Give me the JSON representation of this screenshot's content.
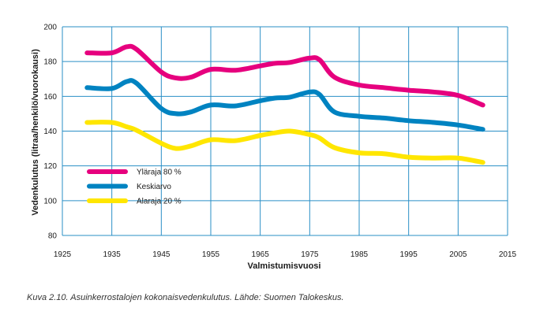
{
  "chart_data": {
    "type": "line",
    "title": "",
    "xlabel": "Valmistumisvuosi",
    "ylabel": "Vedenkulutus (litraa/henkilö/vuorokausi)",
    "xlim": [
      1925,
      2015
    ],
    "ylim": [
      80,
      200
    ],
    "xticks": [
      1925,
      1935,
      1945,
      1955,
      1965,
      1975,
      1985,
      1995,
      2005,
      2015
    ],
    "yticks": [
      80,
      100,
      120,
      140,
      160,
      180,
      200
    ],
    "grid": "vertical lines at tick years; horizontal lines at y-ticks",
    "legend_position": "lower-left",
    "series": [
      {
        "name": "Yläraja 80 %",
        "color": "#e6007e",
        "x": [
          1930,
          1935,
          1938,
          1940,
          1945,
          1948,
          1951,
          1955,
          1960,
          1965,
          1968,
          1971,
          1975,
          1977,
          1980,
          1985,
          1990,
          1995,
          2000,
          2005,
          2010
        ],
        "y": [
          185,
          185,
          188.5,
          187,
          174,
          170.5,
          171,
          175.5,
          175,
          177.5,
          179,
          179.5,
          182,
          181,
          171,
          166.5,
          165,
          163.5,
          162.5,
          160.5,
          155
        ]
      },
      {
        "name": "Keskiarvo",
        "color": "#0083c1",
        "x": [
          1930,
          1935,
          1938,
          1940,
          1945,
          1948,
          1951,
          1955,
          1960,
          1965,
          1968,
          1971,
          1975,
          1977,
          1980,
          1985,
          1990,
          1995,
          2000,
          2005,
          2010
        ],
        "y": [
          165,
          164.5,
          168.5,
          167.5,
          153,
          150,
          151,
          155,
          154.5,
          157.5,
          159,
          159.5,
          162.5,
          161,
          151,
          148.5,
          147.5,
          146,
          145,
          143.5,
          141
        ]
      },
      {
        "name": "Alaraja 20 %",
        "color": "#ffe600",
        "x": [
          1930,
          1935,
          1938,
          1940,
          1945,
          1948,
          1951,
          1955,
          1960,
          1965,
          1968,
          1971,
          1975,
          1977,
          1980,
          1985,
          1990,
          1995,
          2000,
          2005,
          2010
        ],
        "y": [
          145,
          145,
          142.5,
          140.5,
          133,
          130,
          131.5,
          135,
          134.5,
          137.5,
          139,
          140,
          138,
          136,
          130.5,
          127.5,
          127,
          125,
          124.5,
          124.5,
          122
        ]
      }
    ]
  },
  "caption": "Kuva 2.10. Asuinkerrostalojen kokonaisvedenkulutus. Lähde: Suomen Talokeskus."
}
